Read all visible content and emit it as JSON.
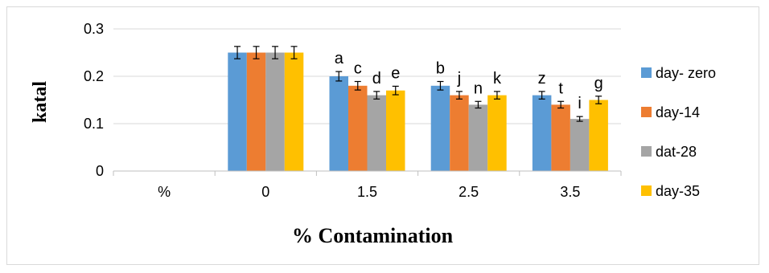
{
  "chart_data": {
    "type": "bar",
    "title": "",
    "xlabel": "% Contamination",
    "ylabel": "katal",
    "categories": [
      "%",
      "0",
      "1.5",
      "2.5",
      "3.5"
    ],
    "ylim": [
      0,
      0.3
    ],
    "yticks": [
      "0",
      "0.1",
      "0.2",
      "0.3"
    ],
    "ytick_values": [
      0,
      0.1,
      0.2,
      0.3
    ],
    "grid": true,
    "legend_position": "right",
    "series": [
      {
        "name": "day- zero",
        "color": "#5b9bd5",
        "values": [
          null,
          0.25,
          0.2,
          0.18,
          0.16
        ],
        "errors": [
          null,
          0.013,
          0.01,
          0.009,
          0.008
        ]
      },
      {
        "name": "day-14",
        "color": "#ed7d31",
        "values": [
          null,
          0.25,
          0.18,
          0.16,
          0.14
        ],
        "errors": [
          null,
          0.013,
          0.009,
          0.008,
          0.007
        ]
      },
      {
        "name": "dat-28",
        "color": "#a5a5a5",
        "values": [
          null,
          0.25,
          0.16,
          0.14,
          0.11
        ],
        "errors": [
          null,
          0.013,
          0.008,
          0.007,
          0.005
        ]
      },
      {
        "name": "day-35",
        "color": "#ffc000",
        "values": [
          null,
          0.25,
          0.17,
          0.16,
          0.15
        ],
        "errors": [
          null,
          0.013,
          0.009,
          0.008,
          0.008
        ]
      }
    ],
    "annotations": [
      {
        "text": "a",
        "category": "1.5",
        "series": 0
      },
      {
        "text": "c",
        "category": "1.5",
        "series": 1
      },
      {
        "text": "d",
        "category": "1.5",
        "series": 2
      },
      {
        "text": "e",
        "category": "1.5",
        "series": 3
      },
      {
        "text": "b",
        "category": "2.5",
        "series": 0
      },
      {
        "text": "j",
        "category": "2.5",
        "series": 1
      },
      {
        "text": "n",
        "category": "2.5",
        "series": 2
      },
      {
        "text": "k",
        "category": "2.5",
        "series": 3
      },
      {
        "text": "z",
        "category": "3.5",
        "series": 0
      },
      {
        "text": "t",
        "category": "3.5",
        "series": 1
      },
      {
        "text": "i",
        "category": "3.5",
        "series": 2
      },
      {
        "text": "g",
        "category": "3.5",
        "series": 3
      }
    ]
  }
}
